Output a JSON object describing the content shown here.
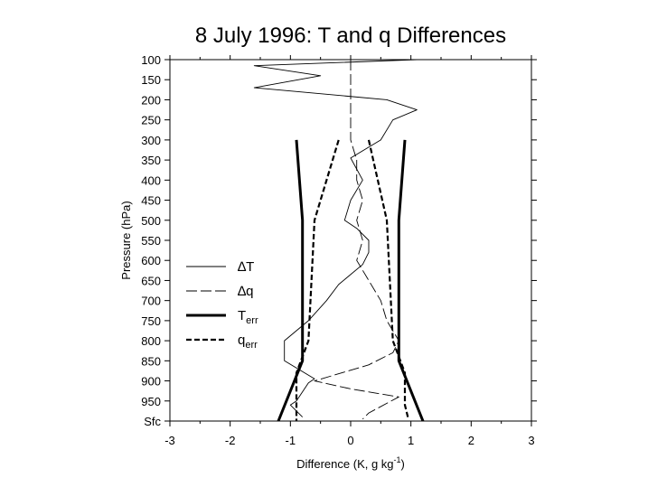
{
  "chart_data": {
    "type": "line",
    "title": "8 July 1996: T and q Differences",
    "xlabel": "Difference (K, g kg",
    "xlabel_sup": "-1",
    "xlabel_end": ")",
    "ylabel": "Pressure (hPa)",
    "xlim": [
      -3,
      3
    ],
    "ylim": [
      1000,
      100
    ],
    "x_ticks": [
      -3,
      -2,
      -1,
      0,
      1,
      2,
      3
    ],
    "y_ticks": [
      100,
      150,
      200,
      250,
      300,
      350,
      400,
      450,
      500,
      550,
      600,
      650,
      700,
      750,
      800,
      850,
      900,
      950,
      1000
    ],
    "y_tick_labels": [
      "100",
      "150",
      "200",
      "250",
      "300",
      "350",
      "400",
      "450",
      "500",
      "550",
      "600",
      "650",
      "700",
      "750",
      "800",
      "850",
      "900",
      "950",
      "Sfc"
    ],
    "grid": false,
    "legend_position": "left",
    "series": [
      {
        "name": "∆T",
        "style": "thin-solid",
        "points": [
          [
            1.1,
            100
          ],
          [
            -1.6,
            115
          ],
          [
            -0.5,
            140
          ],
          [
            -1.6,
            170
          ],
          [
            0.6,
            200
          ],
          [
            1.1,
            225
          ],
          [
            0.7,
            250
          ],
          [
            0.5,
            300
          ],
          [
            0.0,
            345
          ],
          [
            0.2,
            400
          ],
          [
            0.0,
            450
          ],
          [
            -0.1,
            500
          ],
          [
            0.1,
            520
          ],
          [
            0.3,
            550
          ],
          [
            0.3,
            580
          ],
          [
            0.2,
            610
          ],
          [
            -0.2,
            660
          ],
          [
            -0.4,
            700
          ],
          [
            -0.7,
            750
          ],
          [
            -1.1,
            800
          ],
          [
            -1.1,
            850
          ],
          [
            -0.6,
            895
          ],
          [
            -0.7,
            905
          ],
          [
            -0.9,
            950
          ],
          [
            -1.0,
            960
          ],
          [
            -0.8,
            990
          ]
        ]
      },
      {
        "name": "∆q",
        "style": "thin-long-dash",
        "points": [
          [
            0.0,
            100
          ],
          [
            0.0,
            200
          ],
          [
            0.0,
            300
          ],
          [
            0.1,
            350
          ],
          [
            0.1,
            400
          ],
          [
            0.2,
            450
          ],
          [
            0.1,
            500
          ],
          [
            0.2,
            550
          ],
          [
            0.1,
            600
          ],
          [
            0.3,
            650
          ],
          [
            0.5,
            700
          ],
          [
            0.6,
            750
          ],
          [
            0.8,
            800
          ],
          [
            0.7,
            830
          ],
          [
            0.3,
            860
          ],
          [
            -0.6,
            900
          ],
          [
            0.0,
            920
          ],
          [
            0.8,
            940
          ],
          [
            0.3,
            980
          ],
          [
            0.2,
            995
          ]
        ]
      },
      {
        "name": "T",
        "name_sub": "err",
        "style": "thick-solid",
        "mirrored": true,
        "points": [
          [
            0.9,
            300
          ],
          [
            0.8,
            500
          ],
          [
            0.8,
            850
          ],
          [
            1.2,
            1000
          ]
        ]
      },
      {
        "name": "q",
        "name_sub": "err",
        "style": "thick-dash",
        "mirrored": true,
        "points": [
          [
            -0.2,
            300
          ],
          [
            -0.6,
            500
          ],
          [
            -0.7,
            800
          ],
          [
            -0.9,
            880
          ],
          [
            -0.9,
            1000
          ],
          [
            0.3,
            300
          ],
          [
            0.6,
            500
          ],
          [
            0.7,
            800
          ],
          [
            0.9,
            880
          ],
          [
            0.9,
            960
          ],
          [
            0.95,
            990
          ]
        ]
      }
    ]
  }
}
